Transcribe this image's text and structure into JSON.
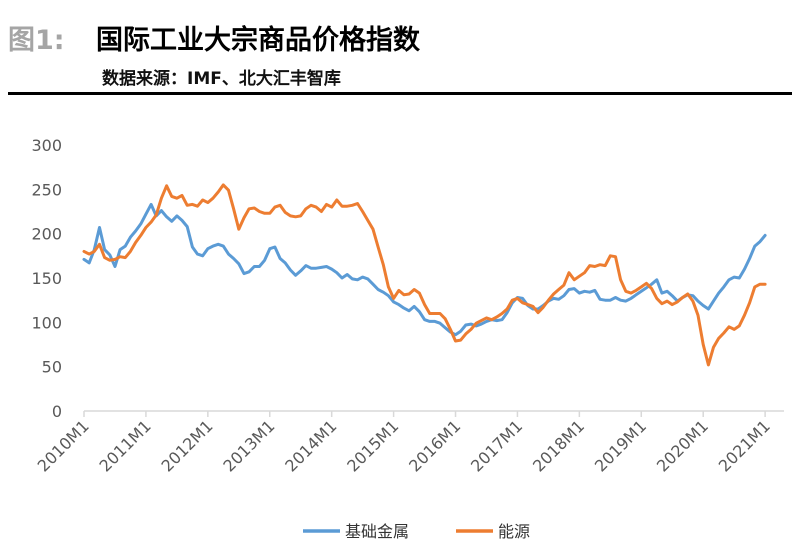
{
  "header": {
    "figure_label": "图1:",
    "title": "国际工业大宗商品价格指数",
    "source": "数据来源：IMF、北大汇丰智库"
  },
  "colors": {
    "metals": "#5b9bd5",
    "energy": "#ed7d31",
    "axis": "#d9d9d9",
    "tick": "#595959"
  },
  "chart_data": {
    "type": "line",
    "title": "国际工业大宗商品价格指数",
    "xlabel": "",
    "ylabel": "",
    "ylim": [
      0,
      300
    ],
    "yticks": [
      0,
      50,
      100,
      150,
      200,
      250,
      300
    ],
    "grid": false,
    "legend": "bottom",
    "x_start": "2010M1",
    "x_step": "month",
    "x_tick_labels": [
      "2010M1",
      "2011M1",
      "2012M1",
      "2013M1",
      "2014M1",
      "2015M1",
      "2016M1",
      "2017M1",
      "2018M1",
      "2019M1",
      "2020M1",
      "2021M1"
    ],
    "series": [
      {
        "name": "基础金属",
        "values": [
          171,
          167,
          182,
          207,
          182,
          176,
          163,
          182,
          186,
          196,
          203,
          211,
          222,
          233,
          220,
          226,
          219,
          214,
          220,
          215,
          208,
          185,
          177,
          175,
          183,
          186,
          188,
          186,
          177,
          172,
          166,
          155,
          157,
          163,
          163,
          170,
          183,
          185,
          172,
          167,
          159,
          153,
          158,
          164,
          161,
          161,
          162,
          163,
          160,
          156,
          150,
          154,
          149,
          148,
          151,
          149,
          143,
          137,
          134,
          130,
          123,
          120,
          116,
          113,
          118,
          112,
          103,
          101,
          101,
          99,
          94,
          89,
          86,
          90,
          97,
          98,
          96,
          98,
          101,
          103,
          102,
          103,
          111,
          122,
          128,
          127,
          119,
          115,
          115,
          119,
          124,
          127,
          126,
          130,
          137,
          138,
          133,
          135,
          134,
          136,
          126,
          125,
          125,
          128,
          125,
          124,
          127,
          131,
          135,
          139,
          143,
          148,
          133,
          135,
          130,
          124,
          128,
          131,
          130,
          124,
          119,
          115,
          124,
          133,
          140,
          148,
          151,
          150,
          160,
          172,
          186,
          191,
          198
        ]
      },
      {
        "name": "能源",
        "values": [
          180,
          177,
          180,
          188,
          173,
          170,
          171,
          174,
          173,
          180,
          190,
          198,
          207,
          213,
          221,
          240,
          254,
          242,
          240,
          243,
          232,
          233,
          231,
          238,
          235,
          240,
          247,
          255,
          249,
          228,
          205,
          218,
          228,
          229,
          225,
          223,
          223,
          230,
          232,
          224,
          220,
          219,
          220,
          228,
          232,
          230,
          225,
          233,
          230,
          238,
          231,
          231,
          232,
          234,
          225,
          215,
          205,
          185,
          165,
          140,
          127,
          136,
          131,
          132,
          137,
          133,
          120,
          110,
          110,
          110,
          104,
          92,
          79,
          80,
          87,
          92,
          99,
          102,
          105,
          103,
          106,
          110,
          115,
          125,
          127,
          122,
          120,
          118,
          111,
          117,
          125,
          132,
          137,
          142,
          156,
          148,
          152,
          156,
          164,
          163,
          165,
          164,
          175,
          174,
          148,
          135,
          133,
          136,
          140,
          144,
          138,
          127,
          121,
          124,
          120,
          123,
          128,
          132,
          124,
          108,
          75,
          52,
          72,
          82,
          88,
          95,
          92,
          96,
          108,
          122,
          140,
          143,
          143
        ]
      }
    ]
  }
}
